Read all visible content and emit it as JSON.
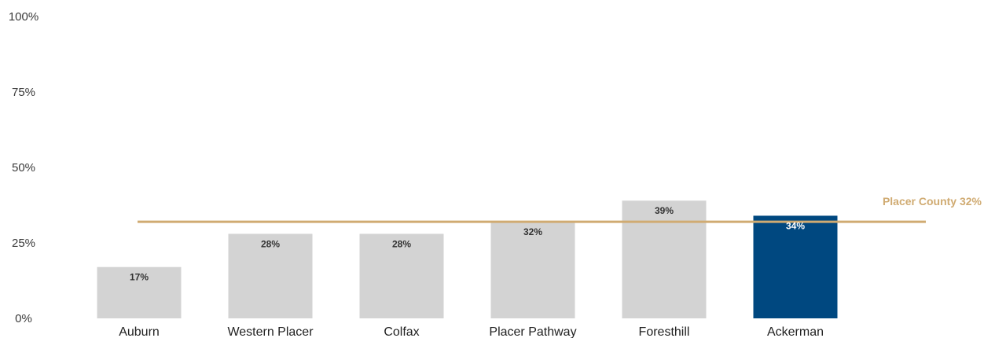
{
  "chart_data": {
    "type": "bar",
    "categories": [
      "Auburn",
      "Western Placer",
      "Colfax",
      "Placer Pathway",
      "Foresthill",
      "Ackerman"
    ],
    "values": [
      17,
      28,
      28,
      32,
      39,
      34
    ],
    "data_labels": [
      "17%",
      "28%",
      "28%",
      "32%",
      "39%",
      "34%"
    ],
    "highlight": "Ackerman",
    "ylim": [
      0,
      100
    ],
    "yticks": [
      0,
      25,
      50,
      75,
      100
    ],
    "ytick_labels": [
      "0%",
      "25%",
      "50%",
      "75%",
      "100%"
    ],
    "reference_line": {
      "value": 32,
      "label": "Placer County 32%"
    },
    "grid": false,
    "colors": {
      "bar": "#d3d3d3",
      "highlight_bar": "#004880",
      "reference": "#d0ab72"
    }
  }
}
